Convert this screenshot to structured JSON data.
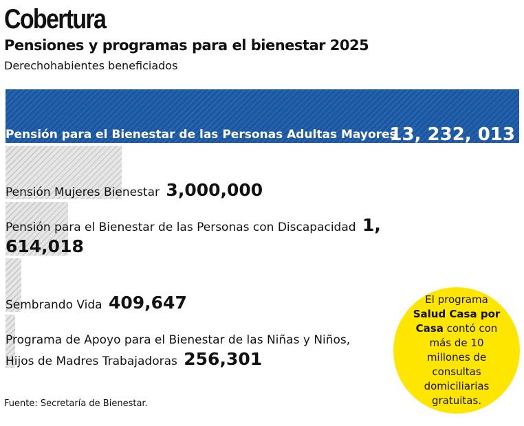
{
  "chart_data": {
    "type": "bar",
    "title": "Cobertura",
    "subtitle": "Pensiones y programas para el bienestar 2025",
    "caption": "Derechohabientes beneficiados",
    "categories": [
      "Pensión para el Bienestar de las Personas Adultas Mayores",
      "Pensión Mujeres Bienestar",
      "Pensión para el Bienestar de las Personas con Discapacidad",
      "Sembrando Vida",
      "Programa de Apoyo para el Bienestar de las Niñas y Niños, Hijos de Madres Trabajadoras"
    ],
    "values": [
      13232013,
      3000000,
      1614018,
      409647,
      256301
    ],
    "value_labels": [
      "13, 232, 013",
      "3,000,000",
      "1, 614,018",
      "409,647",
      "256,301"
    ],
    "colors": [
      "#1c57a2",
      "#d6d6d6",
      "#d6d6d6",
      "#d6d6d6",
      "#d6d6d6"
    ],
    "note": {
      "before": "El programa",
      "bold": "Salud Casa por Casa",
      "after": "contó con más de 10 millones de consultas domiciliarias gratuitas."
    },
    "source": "Fuente: Secretaría de Bienestar."
  }
}
